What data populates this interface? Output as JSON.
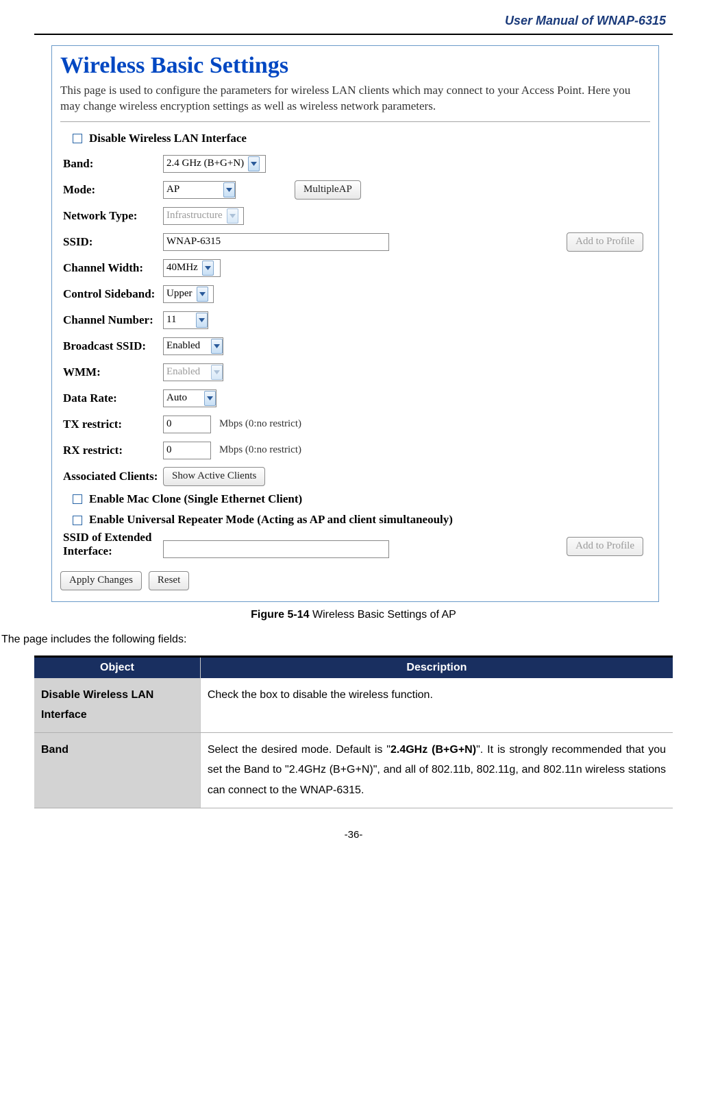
{
  "doc": {
    "header": "User Manual of WNAP-6315",
    "page_number": "-36-"
  },
  "screenshot": {
    "title": "Wireless Basic Settings",
    "description": "This page is used to configure the parameters for wireless LAN clients which may connect to your Access Point. Here you may change wireless encryption settings as well as wireless network parameters.",
    "fields": {
      "disable_wlan": "Disable Wireless LAN Interface",
      "band_label": "Band:",
      "band_value": "2.4 GHz (B+G+N)",
      "mode_label": "Mode:",
      "mode_value": "AP",
      "multiple_ap_btn": "MultipleAP",
      "nettype_label": "Network Type:",
      "nettype_value": "Infrastructure",
      "ssid_label": "SSID:",
      "ssid_value": "WNAP-6315",
      "add_profile_btn": "Add to Profile",
      "chanwidth_label": "Channel Width:",
      "chanwidth_value": "40MHz",
      "sideband_label": "Control Sideband:",
      "sideband_value": "Upper",
      "channum_label": "Channel Number:",
      "channum_value": "11",
      "bssid_label": "Broadcast SSID:",
      "bssid_value": "Enabled",
      "wmm_label": "WMM:",
      "wmm_value": "Enabled",
      "datarate_label": "Data Rate:",
      "datarate_value": "Auto",
      "tx_label": "TX restrict:",
      "tx_value": "0",
      "tx_hint": "Mbps (0:no restrict)",
      "rx_label": "RX restrict:",
      "rx_value": "0",
      "rx_hint": "Mbps (0:no restrict)",
      "assoc_label": "Associated Clients:",
      "assoc_btn": "Show Active Clients",
      "mac_clone": "Enable Mac Clone (Single Ethernet Client)",
      "universal_repeater": "Enable Universal Repeater Mode (Acting as AP and client simultaneouly)",
      "ext_ssid_label": "SSID of Extended Interface:",
      "apply_btn": "Apply Changes",
      "reset_btn": "Reset"
    }
  },
  "figure": {
    "label": "Figure 5-14",
    "text": " Wireless Basic Settings of AP"
  },
  "section_intro": "The page includes the following fields:",
  "table": {
    "header_object": "Object",
    "header_desc": "Description",
    "rows": [
      {
        "object": "Disable Wireless LAN Interface",
        "description_html": "Check the box to disable the wireless function."
      },
      {
        "object": "Band",
        "description_html": "Select the desired mode. Default is \"<b>2.4GHz (B+G+N)</b>\". It is strongly recommended that you set the Band to \"2.4GHz (B+G+N)\", and all of 802.11b, 802.11g, and 802.11n wireless stations can connect to the WNAP-6315."
      }
    ]
  },
  "colors": {
    "header_blue": "#1a3a7a",
    "title_blue": "#0047c2",
    "frame_border": "#6a9ac9",
    "table_header_bg": "#192f60",
    "table_obj_bg": "#d3d3d3"
  }
}
